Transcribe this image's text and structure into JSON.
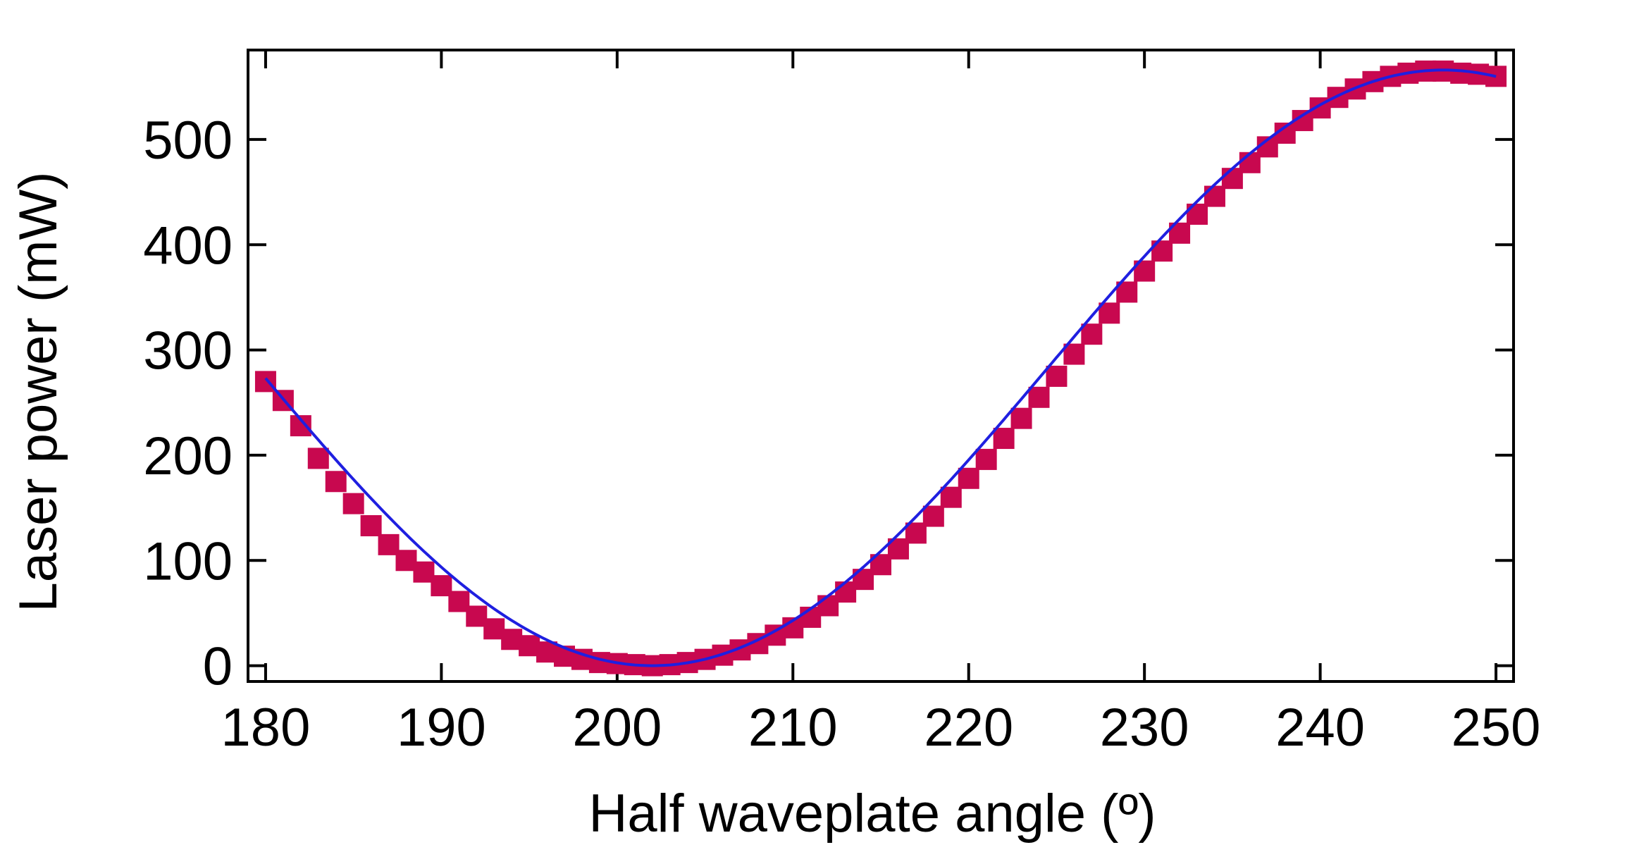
{
  "chart_data": {
    "type": "scatter",
    "xlabel": "Half waveplate angle (º)",
    "ylabel": "Laser power (mW)",
    "xlim": [
      179,
      251
    ],
    "ylim": [
      -15,
      585
    ],
    "x_ticks": [
      180,
      190,
      200,
      210,
      220,
      230,
      240,
      250
    ],
    "y_ticks": [
      0,
      100,
      200,
      300,
      400,
      500
    ],
    "x_tick_labels": [
      "180",
      "190",
      "200",
      "210",
      "220",
      "230",
      "240",
      "250"
    ],
    "y_tick_labels": [
      "0",
      "100",
      "200",
      "300",
      "400",
      "500"
    ],
    "grid": false,
    "legend": "none",
    "colors": {
      "markers": "#c8084f",
      "fit_line": "#1f1fe0",
      "axes": "#000000"
    },
    "series": [
      {
        "kind": "markers",
        "marker": "square",
        "x": [
          180,
          181,
          182,
          183,
          184,
          185,
          186,
          187,
          188,
          189,
          190,
          191,
          192,
          193,
          194,
          195,
          196,
          197,
          198,
          199,
          200,
          201,
          202,
          203,
          204,
          205,
          206,
          207,
          208,
          209,
          210,
          211,
          212,
          213,
          214,
          215,
          216,
          217,
          218,
          219,
          220,
          221,
          222,
          223,
          224,
          225,
          226,
          227,
          228,
          229,
          230,
          231,
          232,
          233,
          234,
          235,
          236,
          237,
          238,
          239,
          240,
          241,
          242,
          243,
          244,
          245,
          246,
          247,
          248,
          249,
          250
        ],
        "y": [
          270,
          252,
          228,
          197,
          175,
          154,
          133,
          115,
          100,
          89,
          76,
          61,
          47,
          35,
          25,
          19,
          13,
          9,
          6,
          3,
          2,
          1,
          0,
          1,
          3,
          6,
          10,
          15,
          21,
          29,
          36,
          46,
          57,
          70,
          82,
          96,
          111,
          126,
          142,
          160,
          178,
          196,
          216,
          235,
          255,
          275,
          296,
          315,
          335,
          355,
          375,
          394,
          411,
          429,
          446,
          463,
          478,
          493,
          506,
          518,
          530,
          540,
          548,
          555,
          560,
          563,
          565,
          565,
          563,
          562,
          560
        ]
      },
      {
        "kind": "fit",
        "model": "sin2",
        "amplitude": 566,
        "minimum_x": 202,
        "period": 90
      }
    ]
  }
}
